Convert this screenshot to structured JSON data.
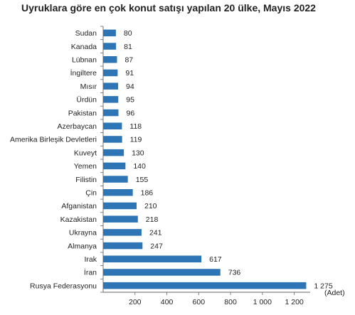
{
  "chart_data": {
    "type": "bar",
    "orientation": "horizontal",
    "title": "Uyruklara göre en çok konut satışı yapılan 20 ülke, Mayıs 2022",
    "xlabel": "(Adet)",
    "ylabel": "",
    "categories": [
      "Sudan",
      "Kanada",
      "Lübnan",
      "İngiltere",
      "Mısır",
      "Ürdün",
      "Pakistan",
      "Azerbaycan",
      "Amerika Birleşik Devletleri",
      "Kuveyt",
      "Yemen",
      "Filistin",
      "Çin",
      "Afganistan",
      "Kazakistan",
      "Ukrayna",
      "Almanya",
      "Irak",
      "İran",
      "Rusya Federasyonu"
    ],
    "values": [
      80,
      81,
      87,
      91,
      94,
      95,
      96,
      118,
      119,
      130,
      140,
      155,
      186,
      210,
      218,
      241,
      247,
      617,
      736,
      1275
    ],
    "value_labels": [
      "80",
      "81",
      "87",
      "91",
      "94",
      "95",
      "96",
      "118",
      "119",
      "130",
      "140",
      "155",
      "186",
      "210",
      "218",
      "241",
      "247",
      "617",
      "736",
      "1 275"
    ],
    "xlim": [
      0,
      1300
    ],
    "x_ticks": [
      200,
      400,
      600,
      800,
      1000,
      1200
    ],
    "x_tick_labels": [
      "200",
      "400",
      "600",
      "800",
      "1 000",
      "1 200"
    ],
    "bar_color": "#2e75b6",
    "grid": false,
    "legend": "none"
  }
}
